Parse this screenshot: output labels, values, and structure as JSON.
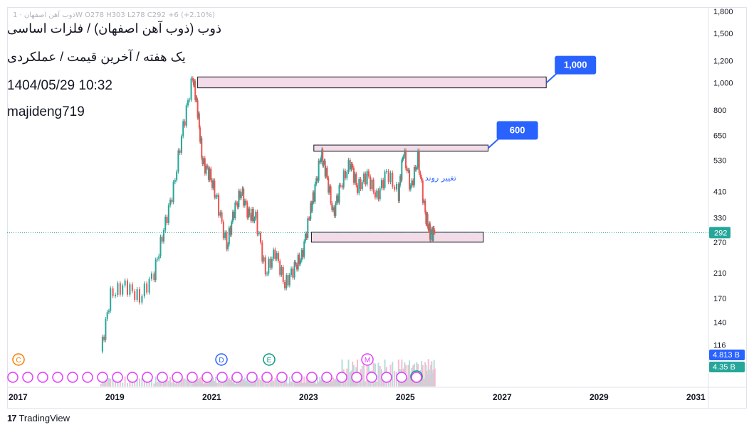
{
  "header": {
    "ticker_line": "ذوب آهن اصفهان · 1W  O278  H303  L278  C292  +6 (+2.10%)",
    "title": "ذوب (ذوب آهن اصفهان) / فلزات اساسی",
    "subtitle": "یک هفته / آخرین قیمت / عملکردی",
    "datetime": "1404/05/29 10:32",
    "author": "majideng719"
  },
  "footer": {
    "brand": "TradingView",
    "logo_icon": "tradingview-logo-icon"
  },
  "colors": {
    "up": "#26a69a",
    "down": "#ef5350",
    "zone_fill": "#f3dce8",
    "callout": "#2962ff",
    "vol_up": "#b2dfdb",
    "vol_down": "#f8bbd0"
  },
  "chart_data": {
    "type": "line",
    "scale": "log",
    "title": "ذوب (ذوب آهن اصفهان) / فلزات اساسی",
    "xlabel": "",
    "ylabel": "",
    "x_ticks": [
      "2017",
      "2019",
      "2021",
      "2023",
      "2025",
      "2027",
      "2029",
      "2031"
    ],
    "y_ticks": [
      "1,800",
      "1,500",
      "1,200",
      "1,000",
      "800",
      "650",
      "530",
      "410",
      "330",
      "270",
      "210",
      "170",
      "140",
      "116"
    ],
    "ylim": [
      110,
      1850
    ],
    "grid": false,
    "last_price": "292",
    "volume_labels": [
      "4.813 B",
      "4.35 B"
    ],
    "series": [
      {
        "name": "",
        "x": [
          2018.7,
          2018.9,
          2019.2,
          2019.5,
          2019.8,
          2020.0,
          2020.2,
          2020.4,
          2020.6,
          2020.7,
          2020.8,
          2020.95,
          2021.1,
          2021.3,
          2021.45,
          2021.6,
          2021.75,
          2021.9,
          2022.1,
          2022.3,
          2022.5,
          2022.7,
          2022.85,
          2023.0,
          2023.1,
          2023.25,
          2023.35,
          2023.5,
          2023.65,
          2023.85,
          2024.0,
          2024.2,
          2024.4,
          2024.6,
          2024.85,
          2024.95,
          2025.1,
          2025.25,
          2025.4,
          2025.5,
          2025.6
        ],
        "y": [
          110,
          175,
          190,
          170,
          210,
          300,
          420,
          700,
          1050,
          800,
          520,
          470,
          380,
          260,
          350,
          410,
          340,
          330,
          210,
          250,
          190,
          220,
          240,
          330,
          400,
          560,
          480,
          340,
          430,
          520,
          420,
          470,
          390,
          480,
          400,
          570,
          420,
          540,
          340,
          290,
          292
        ]
      }
    ],
    "zones": [
      {
        "from": 2020.7,
        "to": 2027.9,
        "low": 960,
        "high": 1050
      },
      {
        "from": 2023.1,
        "to": 2026.7,
        "low": 570,
        "high": 600
      },
      {
        "from": 2023.05,
        "to": 2026.6,
        "low": 270,
        "high": 293
      }
    ],
    "annotations": [
      {
        "text": "1,000",
        "x": 2027.9,
        "y": 1000
      },
      {
        "text": "600",
        "x": 2026.7,
        "y": 585
      },
      {
        "text": "تغییر روند",
        "x": 2025.6,
        "y": 345
      }
    ],
    "event_markers": [
      "C",
      "D",
      "E",
      "M",
      "E"
    ]
  }
}
